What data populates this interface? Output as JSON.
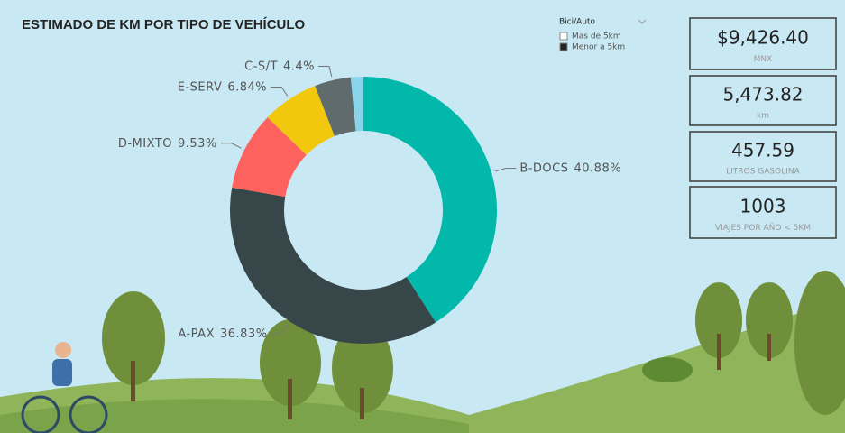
{
  "chart_data": {
    "type": "donut",
    "title": "ESTIMADO DE KM POR TIPO DE VEHÍCULO",
    "categories": [
      "B-DOCS",
      "A-PAX",
      "D-MIXTO",
      "E-SERV",
      "C-S/T",
      null
    ],
    "values": [
      40.88,
      36.83,
      9.53,
      6.84,
      4.4,
      1.52
    ],
    "value_labels": [
      "40.88%",
      "36.83%",
      "9.53%",
      "6.84%",
      "4.4%",
      null
    ],
    "colors": [
      "#01b8aa",
      "#374649",
      "#fd625e",
      "#f2c80f",
      "#5f6b6d",
      "#8ad4eb"
    ]
  },
  "filter": {
    "title": "Bici/Auto",
    "options": [
      "Mas de 5km",
      "Menor a 5km"
    ],
    "selected": 1
  },
  "cards": [
    {
      "value": "$9,426.40",
      "label": "MNX"
    },
    {
      "value": "5,473.82",
      "label": "km"
    },
    {
      "value": "457.59",
      "label": "LITROS GASOLINA"
    },
    {
      "value": "1003",
      "label": "VIAJES POR AÑO < 5KM"
    }
  ]
}
